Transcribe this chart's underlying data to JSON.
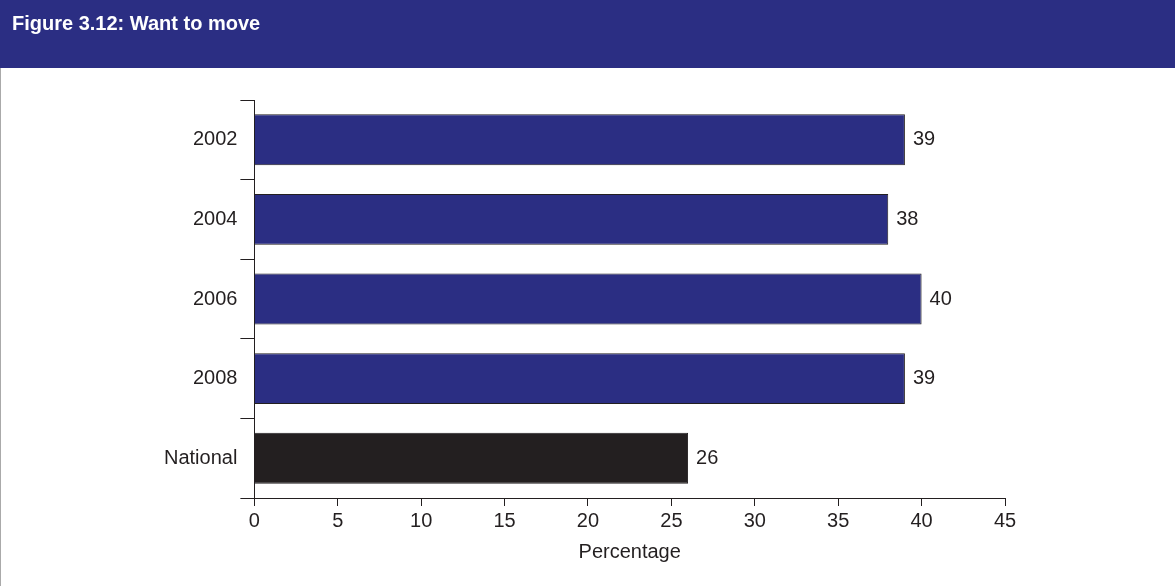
{
  "chart_data": {
    "type": "bar",
    "orientation": "horizontal",
    "title": "Figure 3.12: Want to move",
    "xlabel": "Percentage",
    "categories": [
      "2002",
      "2004",
      "2006",
      "2008",
      "National"
    ],
    "values": [
      39,
      38,
      40,
      39,
      26
    ],
    "colors": [
      "#2b2e83",
      "#2b2e83",
      "#2b2e83",
      "#2b2e83",
      "#231f20"
    ],
    "xlim": [
      0,
      45
    ],
    "xticks": [
      0,
      5,
      10,
      15,
      20,
      25,
      30,
      35,
      40,
      45
    ],
    "data_labels": true,
    "grid": false,
    "legend": false
  }
}
